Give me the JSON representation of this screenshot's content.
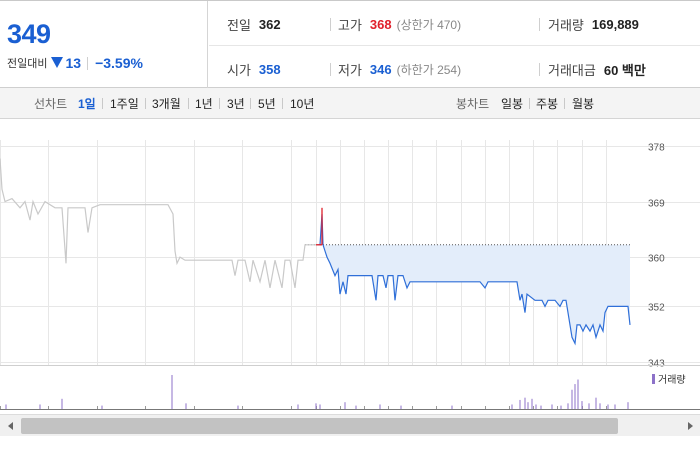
{
  "quote": {
    "current_price": "349",
    "change_label": "전일대비",
    "change_amount": "13",
    "change_rate": "−3.59%",
    "prev_close_label": "전일",
    "prev_close": "362",
    "high_label": "고가",
    "high": "368",
    "upper_limit": "(상한가 470)",
    "volume_label": "거래량",
    "volume": "169,889",
    "open_label": "시가",
    "open": "358",
    "low_label": "저가",
    "low": "346",
    "lower_limit": "(하한가 254)",
    "trade_value_label": "거래대금",
    "trade_value": "60 백만"
  },
  "period_bar": {
    "line_label": "선차트",
    "line_periods": [
      "1일",
      "1주일",
      "3개월",
      "1년",
      "3년",
      "5년",
      "10년"
    ],
    "active_line_period": "1일",
    "candle_label": "봉차트",
    "candle_periods": [
      "일봉",
      "주봉",
      "월봉"
    ]
  },
  "colors": {
    "blue": "#1a5fd2",
    "red": "#e0202b",
    "history_line": "#c9c9c9",
    "today_line": "#2f6fd8",
    "today_fill": "#e3edfa",
    "volume_bar": "#8d72c9",
    "grid": "#e7e7e7"
  },
  "icons": {
    "change_direction": "down-triangle-icon",
    "scroll_left": "left-arrow-icon",
    "scroll_right": "right-arrow-icon"
  },
  "chart_data": {
    "type": "line",
    "y_ticks": [
      "378",
      "369",
      "360",
      "352",
      "343"
    ],
    "ylim": [
      342.5,
      379
    ],
    "reference_level": 362,
    "x_range": [
      0,
      630
    ],
    "history_series": [
      [
        0,
        376
      ],
      [
        2,
        371
      ],
      [
        5,
        369
      ],
      [
        12,
        369.5
      ],
      [
        20,
        368
      ],
      [
        25,
        369
      ],
      [
        30,
        366
      ],
      [
        33,
        369
      ],
      [
        38,
        367
      ],
      [
        45,
        369
      ],
      [
        55,
        368
      ],
      [
        62,
        368
      ],
      [
        66,
        359
      ],
      [
        68,
        368
      ],
      [
        75,
        368
      ],
      [
        85,
        368
      ],
      [
        88,
        364
      ],
      [
        92,
        368
      ],
      [
        100,
        368.5
      ],
      [
        120,
        368.5
      ],
      [
        150,
        368.5
      ],
      [
        168,
        368.5
      ],
      [
        173,
        367
      ],
      [
        175,
        361
      ],
      [
        177,
        359
      ],
      [
        180,
        360
      ],
      [
        185,
        359.5
      ],
      [
        200,
        359.5
      ],
      [
        215,
        359.5
      ],
      [
        232,
        359.5
      ],
      [
        235,
        357
      ],
      [
        238,
        359.5
      ],
      [
        245,
        359.5
      ],
      [
        250,
        356
      ],
      [
        253,
        359.5
      ],
      [
        260,
        356
      ],
      [
        265,
        359.5
      ],
      [
        270,
        355
      ],
      [
        275,
        359.5
      ],
      [
        282,
        355
      ],
      [
        285,
        359.5
      ],
      [
        290,
        359.5
      ],
      [
        295,
        355
      ],
      [
        298,
        359.5
      ],
      [
        303,
        359.5
      ],
      [
        305,
        362
      ],
      [
        318,
        362
      ]
    ],
    "today_series": [
      [
        318,
        362
      ],
      [
        320,
        362
      ],
      [
        322,
        367
      ],
      [
        323,
        362
      ],
      [
        325,
        361
      ],
      [
        327,
        360
      ],
      [
        330,
        359
      ],
      [
        335,
        357
      ],
      [
        338,
        358
      ],
      [
        340,
        354
      ],
      [
        343,
        356
      ],
      [
        346,
        354
      ],
      [
        348,
        357
      ],
      [
        353,
        357
      ],
      [
        360,
        357
      ],
      [
        367,
        357
      ],
      [
        372,
        357
      ],
      [
        376,
        353
      ],
      [
        378,
        357
      ],
      [
        383,
        357
      ],
      [
        386,
        355
      ],
      [
        388,
        357
      ],
      [
        393,
        357
      ],
      [
        395,
        353
      ],
      [
        398,
        357
      ],
      [
        403,
        357
      ],
      [
        407,
        355
      ],
      [
        410,
        356
      ],
      [
        420,
        356
      ],
      [
        440,
        356
      ],
      [
        460,
        356
      ],
      [
        480,
        356
      ],
      [
        485,
        355
      ],
      [
        488,
        356
      ],
      [
        500,
        356
      ],
      [
        510,
        356
      ],
      [
        517,
        356
      ],
      [
        520,
        353
      ],
      [
        522,
        354
      ],
      [
        525,
        351
      ],
      [
        527,
        354
      ],
      [
        535,
        353
      ],
      [
        542,
        353
      ],
      [
        545,
        352
      ],
      [
        548,
        353
      ],
      [
        555,
        353
      ],
      [
        560,
        352
      ],
      [
        563,
        353
      ],
      [
        566,
        353
      ],
      [
        569,
        350
      ],
      [
        572,
        347
      ],
      [
        575,
        346
      ],
      [
        577,
        349
      ],
      [
        580,
        349
      ],
      [
        583,
        348
      ],
      [
        586,
        349
      ],
      [
        590,
        348
      ],
      [
        593,
        349
      ],
      [
        596,
        347
      ],
      [
        600,
        349
      ],
      [
        603,
        348
      ],
      [
        605,
        351
      ],
      [
        608,
        352
      ],
      [
        618,
        352
      ],
      [
        628,
        352
      ],
      [
        630,
        349
      ]
    ],
    "volume_label": "거래량",
    "volume_bars": [
      [
        6,
        4
      ],
      [
        40,
        4
      ],
      [
        62,
        9
      ],
      [
        102,
        3
      ],
      [
        172,
        30
      ],
      [
        186,
        5
      ],
      [
        238,
        3
      ],
      [
        298,
        4
      ],
      [
        316,
        5
      ],
      [
        320,
        4
      ],
      [
        345,
        6
      ],
      [
        356,
        3
      ],
      [
        380,
        4
      ],
      [
        401,
        3
      ],
      [
        452,
        3
      ],
      [
        512,
        4
      ],
      [
        520,
        8
      ],
      [
        525,
        10
      ],
      [
        528,
        6
      ],
      [
        532,
        9
      ],
      [
        536,
        4
      ],
      [
        541,
        3
      ],
      [
        552,
        4
      ],
      [
        561,
        3
      ],
      [
        568,
        5
      ],
      [
        572,
        17
      ],
      [
        575,
        22
      ],
      [
        578,
        26
      ],
      [
        582,
        7
      ],
      [
        589,
        5
      ],
      [
        596,
        10
      ],
      [
        600,
        5
      ],
      [
        608,
        4
      ],
      [
        615,
        4
      ],
      [
        628,
        6
      ]
    ],
    "grid": true,
    "legend": "bottom-right"
  }
}
